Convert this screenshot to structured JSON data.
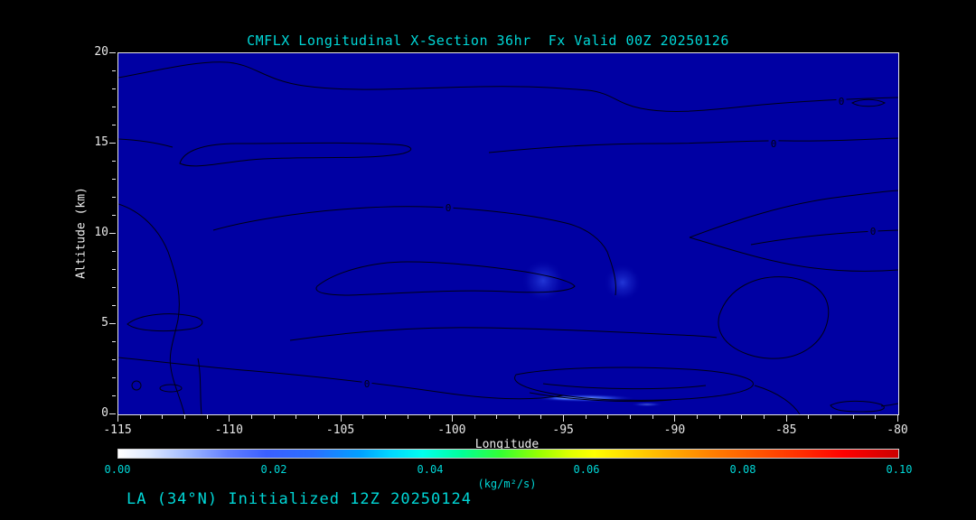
{
  "window": {
    "app": "contour cross-section plot viewer"
  },
  "chart_data": {
    "type": "heatmap",
    "subtype": "filled-contour longitudinal cross-section with zero-contour lines",
    "title": "CMFLX Longitudinal X-Section 36hr  Fx Valid 00Z 20250126",
    "field": "CMFLX",
    "xlabel": "Longitude",
    "ylabel": "Altitude (km)",
    "xlim": [
      -115,
      -80
    ],
    "ylim": [
      0,
      20
    ],
    "x_ticks": [
      "-115",
      "-110",
      "-105",
      "-100",
      "-95",
      "-90",
      "-85",
      "-80"
    ],
    "y_ticks": [
      "20",
      "15",
      "10",
      "5",
      "0"
    ],
    "x_minor_tick_interval": 1,
    "y_minor_tick_interval": 1,
    "grid": false,
    "contour_label": "0",
    "contour_levels_shown": [
      0
    ],
    "background_value": 0.0,
    "notable_features": [
      {
        "longitude": -96,
        "altitude_km": 7.5,
        "value_kg_m2_s": 0.01,
        "desc": "faint enhanced flux patch"
      },
      {
        "longitude": -92.5,
        "altitude_km": 7.5,
        "value_kg_m2_s": 0.01,
        "desc": "faint enhanced flux patch"
      },
      {
        "longitude": -95,
        "altitude_km": 0.8,
        "value_kg_m2_s": 0.03,
        "desc": "bright low-level flux streak"
      }
    ],
    "colorbar": {
      "min": 0.0,
      "max": 0.1,
      "orientation": "horizontal",
      "tick_labels": [
        "0.00",
        "0.02",
        "0.04",
        "0.06",
        "0.08",
        "0.10"
      ],
      "units_label": "(kg/m²/s)",
      "stops": [
        "#ffffff 0%",
        "#dde8ff 4%",
        "#9fb8ff 9%",
        "#637fff 14%",
        "#3a5fff 19%",
        "#2a6fff 25%",
        "#00a0ff 31%",
        "#00d8ff 35%",
        "#00ffee 39%",
        "#00ff99 44%",
        "#33ff33 49%",
        "#99ff00 54%",
        "#e0ff00 58%",
        "#ffff00 61%",
        "#ffd500 66%",
        "#ffaa00 71%",
        "#ff8000 76%",
        "#ff5500 82%",
        "#ff2a00 88%",
        "#ff0000 93%",
        "#cc0000 100%"
      ]
    }
  },
  "annotations": {
    "footer": "LA (34°N) Initialized 12Z 20250124"
  },
  "colors": {
    "page_bg": "#000000",
    "plot_bg": "#0000a3",
    "contour_line": "#000014",
    "title_text": "#00d7d7",
    "tick_text": "#e8e8e8",
    "axis_frame": "#e6e6e6",
    "colorbar_label_text": "#00d7d7",
    "footer_text": "#00d7d7"
  }
}
